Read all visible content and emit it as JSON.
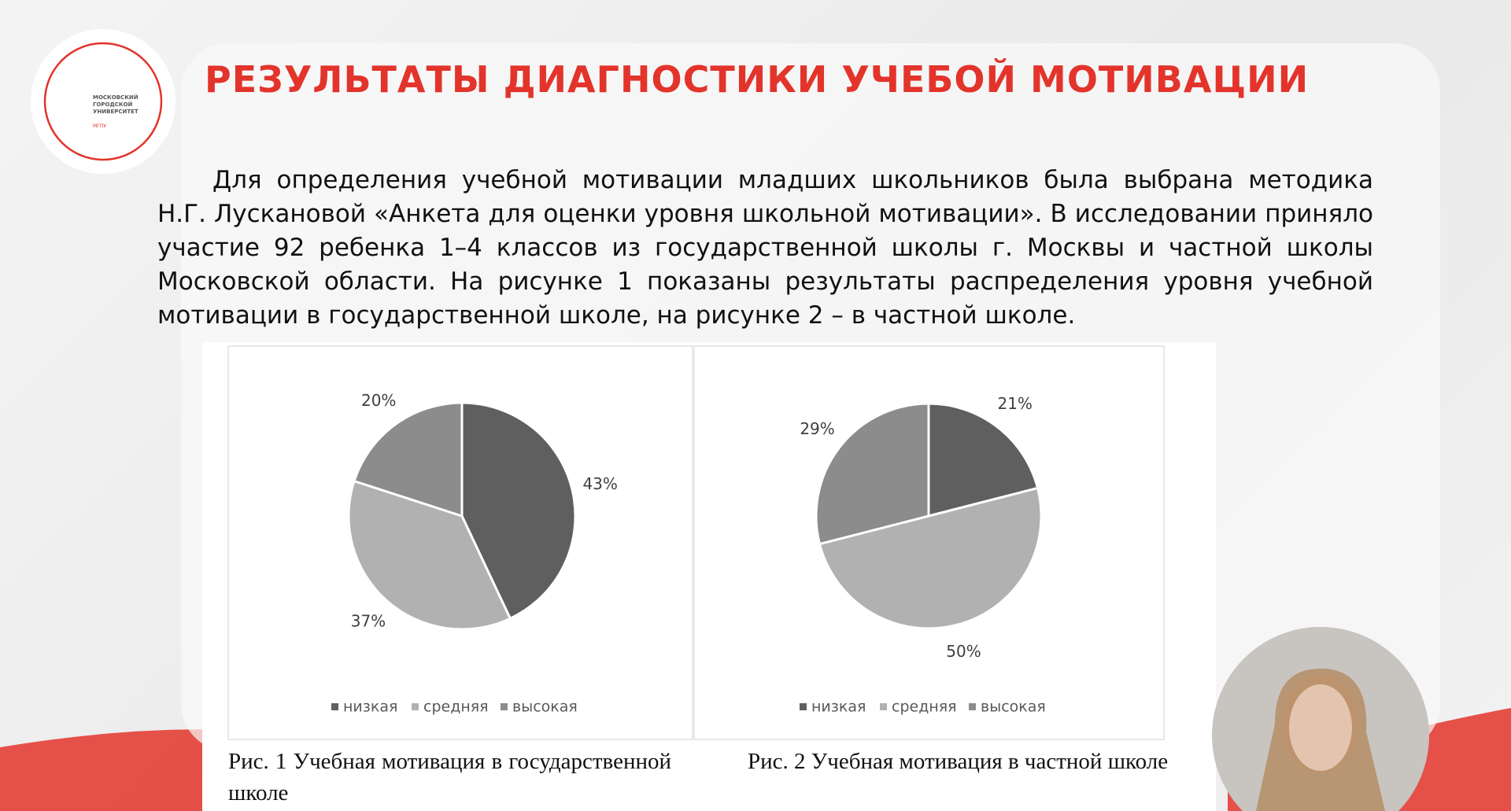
{
  "slide": {
    "title": "РЕЗУЛЬТАТЫ ДИАГНОСТИКИ УЧЕБОЙ МОТИВАЦИИ",
    "logo": "МОСКОВСКИЙ ГОРОДСКОЙ УНИВЕРСИТЕТ",
    "logo_sub": "МГПУ",
    "paragraph": "Для определения учебной мотивации младших школьников была выбрана методика Н.Г. Лускановой «Анкета для оценки уровня школьной мотивации». В исследовании приняло участие 92 ребенка 1–4  классов из государственной школы г. Москвы и частной школы Московской области. На рисунке 1 показаны результаты распределения уровня учебной мотивации в государственной школе, на рисунке 2 – в частной школе."
  },
  "chart_data": [
    {
      "type": "pie",
      "categories": [
        "низкая",
        "средняя",
        "высокая"
      ],
      "values": [
        43,
        37,
        20
      ],
      "value_labels": [
        "43%",
        "37%",
        "20%"
      ],
      "colors": [
        "#5f5f5f",
        "#b1b1b1",
        "#8c8c8c"
      ],
      "legend": "bottom",
      "caption": "Рис. 1 Учебная мотивация в государственной школе"
    },
    {
      "type": "pie",
      "categories": [
        "низкая",
        "средняя",
        "высокая"
      ],
      "values": [
        21,
        50,
        29
      ],
      "value_labels": [
        "21%",
        "50%",
        "29%"
      ],
      "colors": [
        "#5f5f5f",
        "#b1b1b1",
        "#8c8c8c"
      ],
      "legend": "bottom",
      "caption": "Рис. 2 Учебная мотивация в частной школе"
    }
  ]
}
